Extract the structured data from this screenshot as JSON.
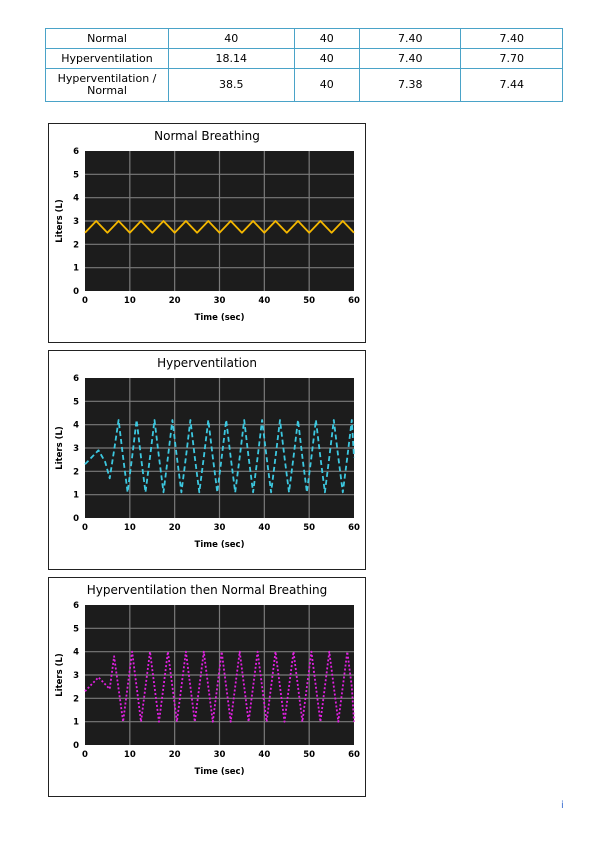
{
  "table": {
    "rows": [
      [
        "Normal",
        "40",
        "40",
        "7.40",
        "7.40"
      ],
      [
        "Hyperventilation",
        "18.14",
        "40",
        "7.40",
        "7.70"
      ],
      [
        "Hyperventilation / Normal",
        "38.5",
        "40",
        "7.38",
        "7.44"
      ]
    ]
  },
  "chart_data": [
    {
      "type": "line",
      "title": "Normal Breathing",
      "xlabel": "Time (sec)",
      "ylabel": "Liters (L)",
      "xlim": [
        0,
        60
      ],
      "ylim": [
        0,
        6
      ],
      "xticks": [
        "0",
        "10",
        "20",
        "30",
        "40",
        "50",
        "60"
      ],
      "yticks": [
        "0",
        "1",
        "2",
        "3",
        "4",
        "5",
        "6"
      ],
      "grid": true,
      "series": [
        {
          "color": "#f5b800",
          "style": "solid",
          "x": [
            0,
            2.5,
            5,
            7.5,
            10,
            12.5,
            15,
            17.5,
            20,
            22.5,
            25,
            27.5,
            30,
            32.5,
            35,
            37.5,
            40,
            42.5,
            45,
            47.5,
            50,
            52.5,
            55,
            57.5,
            60
          ],
          "y": [
            2.5,
            3.0,
            2.5,
            3.0,
            2.5,
            3.0,
            2.5,
            3.0,
            2.5,
            3.0,
            2.5,
            3.0,
            2.5,
            3.0,
            2.5,
            3.0,
            2.5,
            3.0,
            2.5,
            3.0,
            2.5,
            3.0,
            2.5,
            3.0,
            2.5
          ]
        }
      ]
    },
    {
      "type": "line",
      "title": "Hyperventilation",
      "xlabel": "Time (sec)",
      "ylabel": "Liters (L)",
      "xlim": [
        0,
        60
      ],
      "ylim": [
        0,
        6
      ],
      "xticks": [
        "0",
        "10",
        "20",
        "30",
        "40",
        "50",
        "60"
      ],
      "yticks": [
        "0",
        "1",
        "2",
        "3",
        "4",
        "5",
        "6"
      ],
      "grid": true,
      "series": [
        {
          "color": "#3cc8e0",
          "style": "dashed",
          "x": [
            0,
            1.5,
            3,
            4.5,
            5.5,
            6.5,
            7.5,
            8.5,
            9.5,
            10.5,
            11.5,
            12.5,
            13.5,
            14.5,
            15.5,
            16.5,
            17.5,
            18.5,
            19.5,
            20.5,
            21.5,
            22.5,
            23.5,
            24.5,
            25.5,
            26.5,
            27.5,
            28.5,
            29.5,
            30.5,
            31.5,
            32.5,
            33.5,
            34.5,
            35.5,
            36.5,
            37.5,
            38.5,
            39.5,
            40.5,
            41.5,
            42.5,
            43.5,
            44.5,
            45.5,
            46.5,
            47.5,
            48.5,
            49.5,
            50.5,
            51.5,
            52.5,
            53.5,
            54.5,
            55.5,
            56.5,
            57.5,
            58.5,
            59.5,
            60
          ],
          "y": [
            2.3,
            2.6,
            2.9,
            2.4,
            1.7,
            2.9,
            4.2,
            2.6,
            1.1,
            2.6,
            4.2,
            2.6,
            1.1,
            2.6,
            4.2,
            2.6,
            1.1,
            2.6,
            4.2,
            2.6,
            1.1,
            2.6,
            4.2,
            2.6,
            1.1,
            2.6,
            4.2,
            2.6,
            1.1,
            2.6,
            4.2,
            2.6,
            1.1,
            2.6,
            4.2,
            2.6,
            1.1,
            2.6,
            4.2,
            2.6,
            1.1,
            2.6,
            4.2,
            2.6,
            1.1,
            2.6,
            4.2,
            2.6,
            1.1,
            2.6,
            4.2,
            2.6,
            1.1,
            2.6,
            4.2,
            2.6,
            1.1,
            2.6,
            4.2,
            2.6
          ]
        }
      ]
    },
    {
      "type": "line",
      "title": "Hyperventilation then Normal Breathing",
      "xlabel": "Time (sec)",
      "ylabel": "Liters (L)",
      "xlim": [
        0,
        60
      ],
      "ylim": [
        0,
        6
      ],
      "xticks": [
        "0",
        "10",
        "20",
        "30",
        "40",
        "50",
        "60"
      ],
      "yticks": [
        "0",
        "1",
        "2",
        "3",
        "4",
        "5",
        "6"
      ],
      "grid": true,
      "series": [
        {
          "color": "#e020e0",
          "style": "dotted",
          "x": [
            0,
            1.5,
            3,
            4.5,
            5.5,
            6.5,
            7.5,
            8.5,
            9.5,
            10.5,
            11.5,
            12.5,
            13.5,
            14.5,
            15.5,
            16.5,
            17.5,
            18.5,
            19.5,
            20.5,
            21.5,
            22.5,
            23.5,
            24.5,
            25.5,
            26.5,
            27.5,
            28.5,
            29.5,
            30.5,
            31.5,
            32.5,
            33.5,
            34.5,
            35.5,
            36.5,
            37.5,
            38.5,
            39.5,
            40.5,
            41.5,
            42.5,
            43.5,
            44.5,
            45.5,
            46.5,
            47.5,
            48.5,
            49.5,
            50.5,
            51.5,
            52.5,
            53.5,
            54.5,
            55.5,
            56.5,
            57.5,
            58.5,
            59.5,
            60
          ],
          "y": [
            2.3,
            2.6,
            2.9,
            2.6,
            2.4,
            3.8,
            2.4,
            1.0,
            2.5,
            4.0,
            2.5,
            1.0,
            2.5,
            4.0,
            2.5,
            1.0,
            2.5,
            4.0,
            2.5,
            1.0,
            2.5,
            4.0,
            2.5,
            1.0,
            2.5,
            4.0,
            2.5,
            1.0,
            2.5,
            4.0,
            2.5,
            1.0,
            2.5,
            4.0,
            2.5,
            1.0,
            2.5,
            4.0,
            2.5,
            1.0,
            2.5,
            4.0,
            2.5,
            1.0,
            2.5,
            4.0,
            2.5,
            1.0,
            2.5,
            4.0,
            2.5,
            1.0,
            2.5,
            4.0,
            2.5,
            1.0,
            2.5,
            4.0,
            2.5,
            1.0
          ]
        }
      ]
    }
  ],
  "page_number": "i"
}
